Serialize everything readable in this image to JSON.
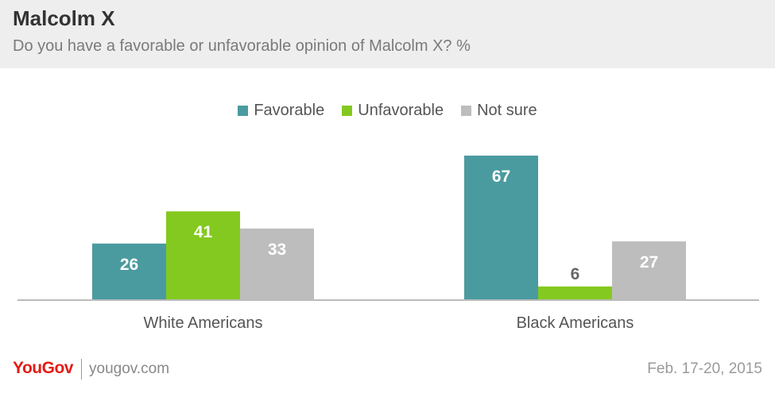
{
  "header": {
    "title": "Malcolm X",
    "subtitle": "Do you have a favorable or unfavorable opinion of Malcolm X? %"
  },
  "footer": {
    "brand": "YouGov",
    "url": "yougov.com",
    "date": "Feb. 17-20, 2015"
  },
  "colors": {
    "Favorable": "#4a9b9f",
    "Unfavorable": "#84c91f",
    "Not sure": "#bdbdbd",
    "brand": "#e41b13"
  },
  "chart_data": {
    "type": "bar",
    "categories": [
      "White Americans",
      "Black Americans"
    ],
    "series": [
      {
        "name": "Favorable",
        "values": [
          26,
          67
        ]
      },
      {
        "name": "Unfavorable",
        "values": [
          41,
          6
        ]
      },
      {
        "name": "Not sure",
        "values": [
          33,
          27
        ]
      }
    ],
    "title": "Malcolm X",
    "subtitle": "Do you have a favorable or unfavorable opinion of Malcolm X? %",
    "ylim": [
      0,
      70
    ],
    "grid": false,
    "legend_position": "top-center"
  }
}
